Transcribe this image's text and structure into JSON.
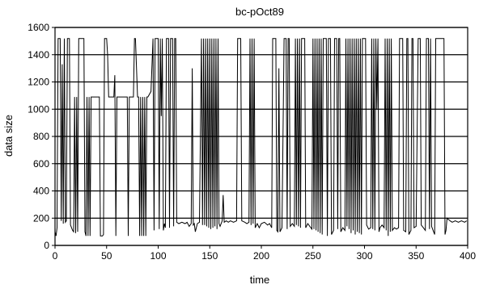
{
  "chart_data": {
    "type": "line",
    "title": "bc-pOct89",
    "xlabel": "time",
    "ylabel": "data size",
    "xlim": [
      0,
      400
    ],
    "ylim": [
      0,
      1600
    ],
    "x_ticks": [
      0,
      50,
      100,
      150,
      200,
      250,
      300,
      350,
      400
    ],
    "y_ticks": [
      0,
      200,
      400,
      600,
      800,
      1000,
      1200,
      1400,
      1600
    ],
    "grid": "horizontal",
    "legend": "none",
    "series": [
      {
        "color": "#000000",
        "points": [
          [
            0,
            100
          ],
          [
            1,
            70
          ],
          [
            2,
            130
          ],
          [
            3,
            1518
          ],
          [
            5,
            1518
          ],
          [
            6,
            180
          ],
          [
            7,
            1330
          ],
          [
            8,
            160
          ],
          [
            9,
            1518
          ],
          [
            10,
            170
          ],
          [
            11,
            180
          ],
          [
            12,
            1518
          ],
          [
            14,
            1518
          ],
          [
            15,
            150
          ],
          [
            17,
            110
          ],
          [
            18,
            100
          ],
          [
            19,
            1090
          ],
          [
            20,
            90
          ],
          [
            21,
            1090
          ],
          [
            22,
            100
          ],
          [
            23,
            1518
          ],
          [
            28,
            1518
          ],
          [
            29,
            100
          ],
          [
            30,
            70
          ],
          [
            31,
            1090
          ],
          [
            32,
            70
          ],
          [
            33,
            1090
          ],
          [
            34,
            70
          ],
          [
            35,
            1090
          ],
          [
            43,
            1090
          ],
          [
            44,
            70
          ],
          [
            46,
            70
          ],
          [
            47,
            80
          ],
          [
            48,
            1518
          ],
          [
            50,
            1518
          ],
          [
            51,
            1400
          ],
          [
            52,
            1090
          ],
          [
            57,
            1090
          ],
          [
            58,
            1250
          ],
          [
            59,
            70
          ],
          [
            60,
            1090
          ],
          [
            70,
            1090
          ],
          [
            71,
            70
          ],
          [
            72,
            1090
          ],
          [
            76,
            1090
          ],
          [
            77,
            1518
          ],
          [
            78,
            1518
          ],
          [
            80,
            1090
          ],
          [
            81,
            1090
          ],
          [
            82,
            70
          ],
          [
            83,
            1090
          ],
          [
            84,
            70
          ],
          [
            85,
            1090
          ],
          [
            86,
            70
          ],
          [
            87,
            1090
          ],
          [
            88,
            70
          ],
          [
            89,
            1090
          ],
          [
            90,
            1090
          ],
          [
            93,
            1130
          ],
          [
            95,
            1518
          ],
          [
            96,
            110
          ],
          [
            97,
            1518
          ],
          [
            100,
            1518
          ],
          [
            101,
            120
          ],
          [
            102,
            1518
          ],
          [
            103,
            950
          ],
          [
            104,
            1518
          ],
          [
            105,
            110
          ],
          [
            106,
            160
          ],
          [
            107,
            130
          ],
          [
            108,
            1518
          ],
          [
            110,
            1518
          ],
          [
            111,
            130
          ],
          [
            112,
            1518
          ],
          [
            114,
            1518
          ],
          [
            115,
            140
          ],
          [
            116,
            1518
          ],
          [
            117,
            1518
          ],
          [
            118,
            170
          ],
          [
            120,
            160
          ],
          [
            123,
            170
          ],
          [
            126,
            160
          ],
          [
            128,
            170
          ],
          [
            130,
            140
          ],
          [
            132,
            160
          ],
          [
            133,
            1300
          ],
          [
            134,
            150
          ],
          [
            135,
            160
          ],
          [
            136,
            100
          ],
          [
            138,
            160
          ],
          [
            140,
            170
          ],
          [
            142,
            1518
          ],
          [
            143,
            150
          ],
          [
            144,
            1518
          ],
          [
            145,
            150
          ],
          [
            146,
            1518
          ],
          [
            147,
            140
          ],
          [
            148,
            1518
          ],
          [
            149,
            130
          ],
          [
            150,
            1518
          ],
          [
            151,
            120
          ],
          [
            152,
            1518
          ],
          [
            153,
            130
          ],
          [
            154,
            1518
          ],
          [
            155,
            140
          ],
          [
            156,
            1518
          ],
          [
            157,
            120
          ],
          [
            158,
            1518
          ],
          [
            159,
            160
          ],
          [
            160,
            140
          ],
          [
            162,
            180
          ],
          [
            163,
            370
          ],
          [
            164,
            170
          ],
          [
            166,
            180
          ],
          [
            168,
            170
          ],
          [
            170,
            180
          ],
          [
            173,
            170
          ],
          [
            176,
            180
          ],
          [
            177,
            1518
          ],
          [
            180,
            1518
          ],
          [
            181,
            180
          ],
          [
            184,
            170
          ],
          [
            186,
            160
          ],
          [
            188,
            170
          ],
          [
            189,
            1518
          ],
          [
            190,
            150
          ],
          [
            191,
            1518
          ],
          [
            192,
            160
          ],
          [
            193,
            1518
          ],
          [
            194,
            130
          ],
          [
            196,
            160
          ],
          [
            198,
            130
          ],
          [
            200,
            160
          ],
          [
            203,
            170
          ],
          [
            206,
            150
          ],
          [
            208,
            160
          ],
          [
            210,
            130
          ],
          [
            211,
            1518
          ],
          [
            214,
            1518
          ],
          [
            215,
            110
          ],
          [
            216,
            100
          ],
          [
            217,
            1300
          ],
          [
            218,
            100
          ],
          [
            220,
            130
          ],
          [
            222,
            1518
          ],
          [
            224,
            1518
          ],
          [
            225,
            120
          ],
          [
            226,
            1518
          ],
          [
            227,
            1518
          ],
          [
            228,
            140
          ],
          [
            230,
            160
          ],
          [
            232,
            140
          ],
          [
            233,
            1518
          ],
          [
            234,
            150
          ],
          [
            235,
            1518
          ],
          [
            236,
            140
          ],
          [
            237,
            1518
          ],
          [
            238,
            130
          ],
          [
            239,
            1518
          ],
          [
            242,
            1518
          ],
          [
            243,
            130
          ],
          [
            245,
            160
          ],
          [
            247,
            140
          ],
          [
            249,
            120
          ],
          [
            250,
            1518
          ],
          [
            251,
            120
          ],
          [
            252,
            1518
          ],
          [
            253,
            110
          ],
          [
            254,
            1518
          ],
          [
            255,
            100
          ],
          [
            256,
            1518
          ],
          [
            257,
            90
          ],
          [
            258,
            1518
          ],
          [
            259,
            80
          ],
          [
            260,
            1518
          ],
          [
            263,
            1518
          ],
          [
            264,
            70
          ],
          [
            265,
            1518
          ],
          [
            267,
            1518
          ],
          [
            268,
            80
          ],
          [
            270,
            110
          ],
          [
            271,
            1518
          ],
          [
            273,
            1518
          ],
          [
            274,
            120
          ],
          [
            275,
            1518
          ],
          [
            276,
            1518
          ],
          [
            277,
            100
          ],
          [
            279,
            130
          ],
          [
            281,
            110
          ],
          [
            282,
            1518
          ],
          [
            283,
            140
          ],
          [
            284,
            1518
          ],
          [
            285,
            120
          ],
          [
            286,
            1518
          ],
          [
            287,
            90
          ],
          [
            288,
            1518
          ],
          [
            289,
            110
          ],
          [
            290,
            1518
          ],
          [
            291,
            80
          ],
          [
            292,
            1518
          ],
          [
            293,
            100
          ],
          [
            294,
            1518
          ],
          [
            295,
            90
          ],
          [
            296,
            1518
          ],
          [
            297,
            80
          ],
          [
            298,
            1518
          ],
          [
            301,
            1518
          ],
          [
            302,
            150
          ],
          [
            304,
            120
          ],
          [
            306,
            130
          ],
          [
            307,
            1518
          ],
          [
            308,
            120
          ],
          [
            309,
            1518
          ],
          [
            310,
            110
          ],
          [
            311,
            1518
          ],
          [
            312,
            1000
          ],
          [
            313,
            1518
          ],
          [
            314,
            100
          ],
          [
            315,
            130
          ],
          [
            317,
            150
          ],
          [
            319,
            130
          ],
          [
            320,
            1518
          ],
          [
            321,
            110
          ],
          [
            322,
            1518
          ],
          [
            323,
            70
          ],
          [
            324,
            1518
          ],
          [
            325,
            100
          ],
          [
            326,
            1518
          ],
          [
            327,
            110
          ],
          [
            329,
            130
          ],
          [
            331,
            120
          ],
          [
            333,
            130
          ],
          [
            334,
            1518
          ],
          [
            337,
            1518
          ],
          [
            338,
            110
          ],
          [
            340,
            100
          ],
          [
            341,
            1518
          ],
          [
            342,
            1518
          ],
          [
            343,
            80
          ],
          [
            345,
            110
          ],
          [
            346,
            1518
          ],
          [
            347,
            1518
          ],
          [
            348,
            130
          ],
          [
            350,
            140
          ],
          [
            352,
            1518
          ],
          [
            354,
            1518
          ],
          [
            355,
            150
          ],
          [
            357,
            130
          ],
          [
            359,
            110
          ],
          [
            360,
            1518
          ],
          [
            362,
            1518
          ],
          [
            363,
            120
          ],
          [
            364,
            1518
          ],
          [
            365,
            140
          ],
          [
            367,
            100
          ],
          [
            368,
            80
          ],
          [
            369,
            1518
          ],
          [
            377,
            1518
          ],
          [
            378,
            80
          ],
          [
            379,
            110
          ],
          [
            380,
            200
          ],
          [
            383,
            180
          ],
          [
            385,
            170
          ],
          [
            388,
            180
          ],
          [
            391,
            170
          ],
          [
            394,
            180
          ],
          [
            397,
            170
          ],
          [
            399,
            180
          ]
        ]
      }
    ]
  }
}
